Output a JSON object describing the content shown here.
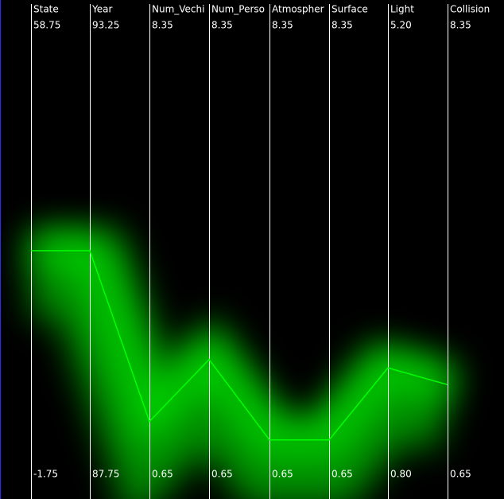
{
  "chart_data": {
    "type": "parallel",
    "color": "#00ff00",
    "axes": [
      {
        "label": "State",
        "ylim": [
          -1.75,
          58.75
        ]
      },
      {
        "label": "Year",
        "ylim": [
          87.75,
          93.25
        ]
      },
      {
        "label": "Num_Vechi",
        "ylim": [
          0.65,
          8.35
        ]
      },
      {
        "label": "Num_Perso",
        "ylim": [
          0.65,
          8.35
        ]
      },
      {
        "label": "Atmospher",
        "ylim": [
          0.65,
          8.35
        ]
      },
      {
        "label": "Surface",
        "ylim": [
          0.65,
          8.35
        ]
      },
      {
        "label": "Light",
        "ylim": [
          {
            "value": 0.8,
            "label": "0.80"
          },
          {
            "value": 5.2,
            "label": "5.20"
          }
        ]
      },
      {
        "label": "Collision",
        "ylim": [
          0.65,
          8.35
        ]
      }
    ],
    "values": [
      28.5,
      90.5,
      1.44,
      2.55,
      1.11,
      1.11,
      1.8,
      2.1
    ]
  }
}
